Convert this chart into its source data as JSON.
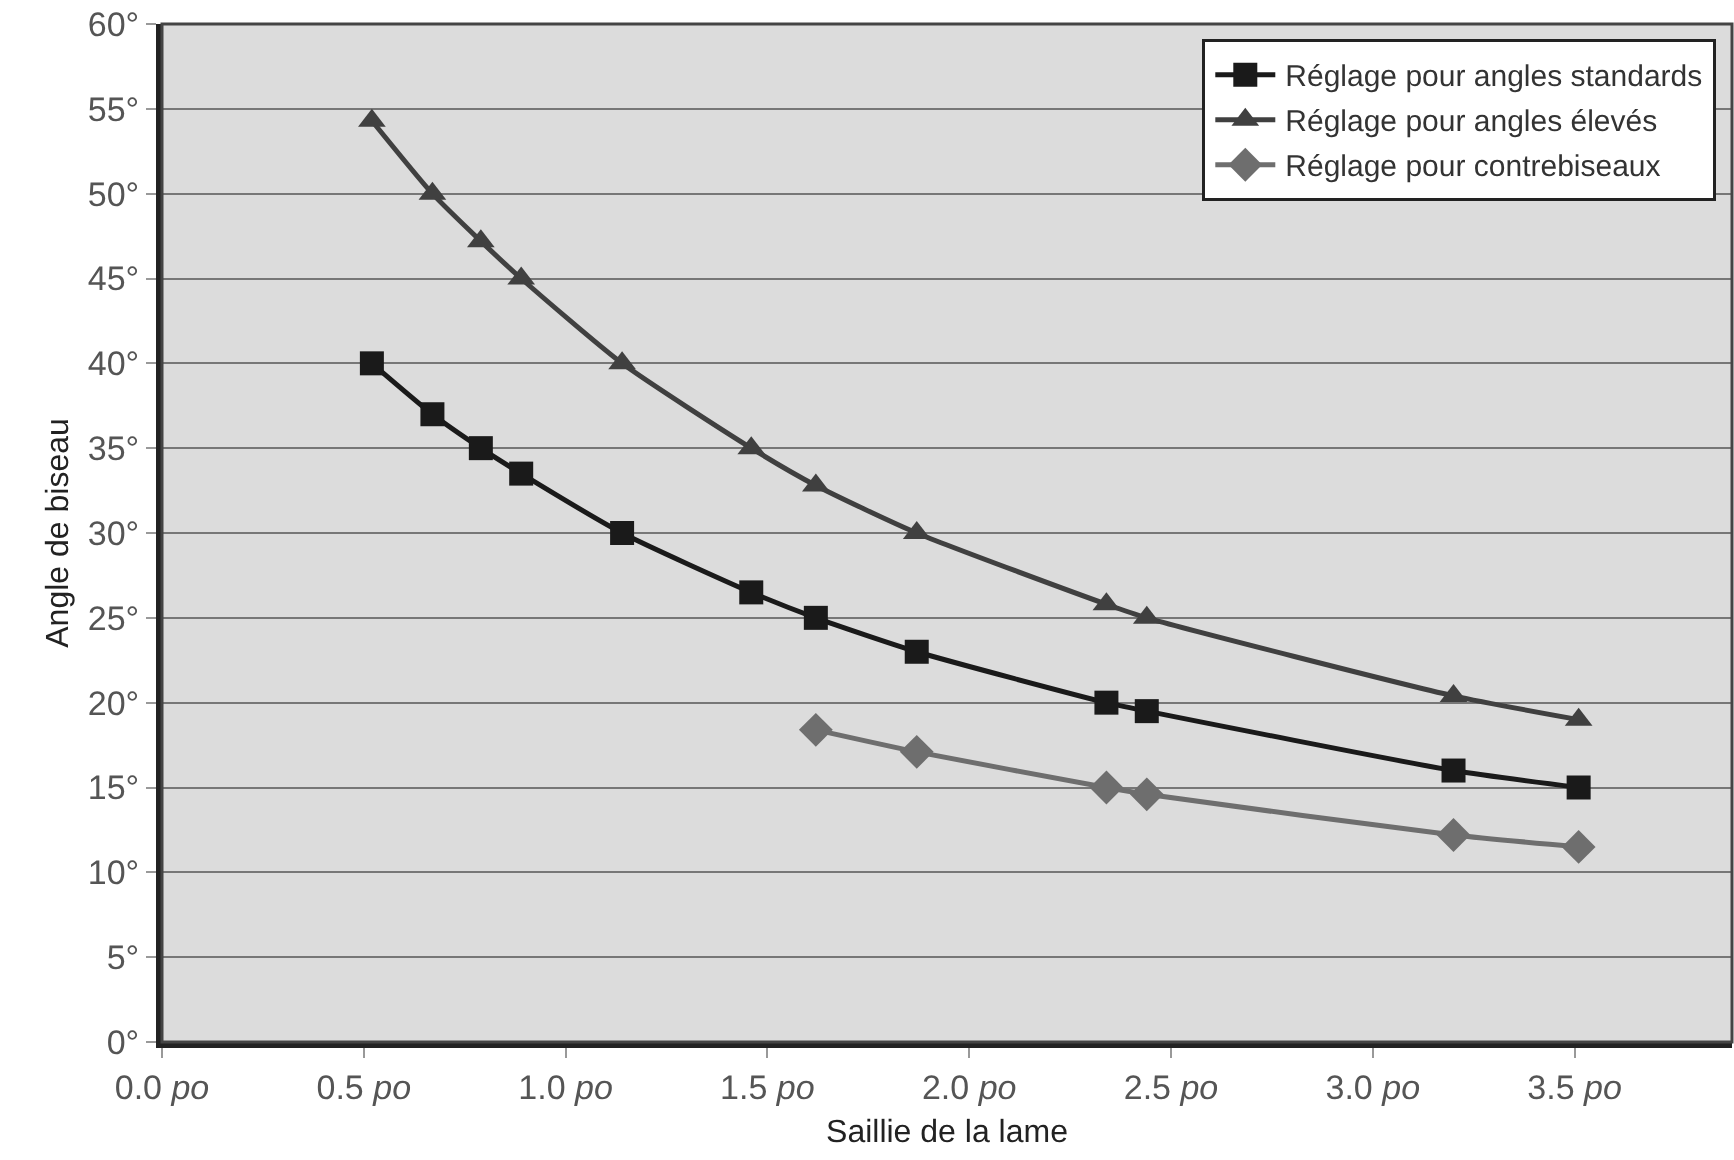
{
  "chart_data": {
    "type": "line",
    "xlabel": "Saillie de la lame",
    "ylabel": "Angle de biseau",
    "xlim": [
      0,
      3.89
    ],
    "ylim": [
      0,
      60
    ],
    "xticks": [
      {
        "value": 0,
        "label": "0.0 po"
      },
      {
        "value": 0.5,
        "label": "0.5 po"
      },
      {
        "value": 1,
        "label": "1.0 po"
      },
      {
        "value": 1.5,
        "label": "1.5 po"
      },
      {
        "value": 2,
        "label": "2.0 po"
      },
      {
        "value": 2.5,
        "label": "2.5 po"
      },
      {
        "value": 3,
        "label": "3.0 po"
      },
      {
        "value": 3.5,
        "label": "3.5 po"
      }
    ],
    "yticks": [
      {
        "value": 0,
        "label": "0°"
      },
      {
        "value": 5,
        "label": "5°"
      },
      {
        "value": 10,
        "label": "10°"
      },
      {
        "value": 15,
        "label": "15°"
      },
      {
        "value": 20,
        "label": "20°"
      },
      {
        "value": 25,
        "label": "25°"
      },
      {
        "value": 30,
        "label": "30°"
      },
      {
        "value": 35,
        "label": "35°"
      },
      {
        "value": 40,
        "label": "40°"
      },
      {
        "value": 45,
        "label": "45°"
      },
      {
        "value": 50,
        "label": "50°"
      },
      {
        "value": 55,
        "label": "55°"
      },
      {
        "value": 60,
        "label": "60°"
      }
    ],
    "grid": "y",
    "legend": "top right",
    "line_style": "solid",
    "series": [
      {
        "name": "Réglage pour angles standards",
        "color": "#1a1a1a",
        "marker": "square",
        "x": [
          0.52,
          0.67,
          0.79,
          0.89,
          1.14,
          1.46,
          1.62,
          1.87,
          2.34,
          2.44,
          3.2,
          3.51
        ],
        "values": [
          40,
          37,
          35,
          33.5,
          30,
          26.5,
          25,
          23,
          20,
          19.5,
          16,
          15
        ]
      },
      {
        "name": "Réglage pour angles élevés",
        "color": "#404040",
        "marker": "triangle",
        "x": [
          0.52,
          0.67,
          0.79,
          0.89,
          1.14,
          1.46,
          1.62,
          1.87,
          2.34,
          2.44,
          3.2,
          3.51
        ],
        "values": [
          54.3,
          50,
          47.2,
          45,
          40,
          35,
          32.8,
          30,
          25.8,
          25,
          20.4,
          19
        ]
      },
      {
        "name": "Réglage pour contrebiseaux",
        "color": "#6e6e6e",
        "marker": "diamond",
        "x": [
          1.62,
          1.87,
          2.34,
          2.44,
          3.2,
          3.51
        ],
        "values": [
          18.4,
          17.1,
          15,
          14.6,
          12.2,
          11.5
        ]
      }
    ]
  }
}
